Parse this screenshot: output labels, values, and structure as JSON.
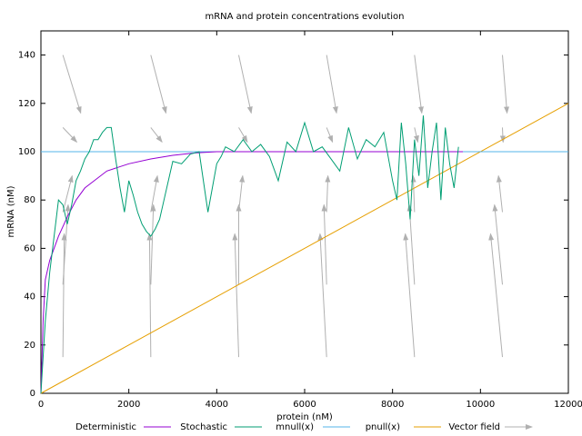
{
  "chart_data": {
    "type": "line",
    "title": "mRNA and protein concentrations evolution",
    "x_label": "protein (nM)",
    "y_label": "mRNA (nM)",
    "xlim": [
      0,
      12000
    ],
    "ylim": [
      0,
      150
    ],
    "xticks": [
      0,
      2000,
      4000,
      6000,
      8000,
      10000,
      12000
    ],
    "yticks": [
      0,
      20,
      40,
      60,
      80,
      100,
      120,
      140
    ],
    "grid": false,
    "series": [
      {
        "name": "Deterministic",
        "color": "#9400d3",
        "x": [
          0,
          50,
          100,
          200,
          400,
          600,
          800,
          1000,
          1500,
          2000,
          2500,
          3000,
          3500,
          4000,
          6000,
          9600
        ],
        "values": [
          0,
          30,
          47,
          55,
          65,
          73,
          80,
          85,
          92,
          95,
          97,
          98.5,
          99.5,
          100,
          100,
          100
        ]
      },
      {
        "name": "Stochastic",
        "color": "#009e73",
        "x": [
          0,
          100,
          200,
          300,
          400,
          500,
          600,
          700,
          800,
          900,
          1000,
          1100,
          1200,
          1300,
          1400,
          1500,
          1600,
          1700,
          1800,
          1900,
          2000,
          2100,
          2200,
          2300,
          2400,
          2500,
          2600,
          2700,
          2800,
          2900,
          3000,
          3200,
          3400,
          3600,
          3800,
          3900,
          4000,
          4100,
          4200,
          4400,
          4600,
          4800,
          5000,
          5200,
          5400,
          5600,
          5800,
          6000,
          6200,
          6400,
          6600,
          6800,
          7000,
          7200,
          7400,
          7600,
          7800,
          8000,
          8100,
          8200,
          8300,
          8400,
          8500,
          8600,
          8700,
          8800,
          8900,
          9000,
          9100,
          9200,
          9300,
          9400,
          9500
        ],
        "values": [
          0,
          30,
          50,
          65,
          80,
          78,
          70,
          78,
          88,
          92,
          97,
          100,
          105,
          105,
          108,
          110,
          110,
          97,
          85,
          75,
          88,
          82,
          75,
          70,
          67,
          65,
          68,
          72,
          80,
          88,
          96,
          95,
          99,
          100,
          75,
          85,
          95,
          98,
          102,
          100,
          105,
          100,
          103,
          98,
          88,
          104,
          100,
          112,
          100,
          102,
          97,
          92,
          110,
          97,
          105,
          102,
          108,
          88,
          80,
          112,
          95,
          72,
          105,
          90,
          115,
          85,
          100,
          112,
          80,
          110,
          95,
          85,
          102
        ]
      },
      {
        "name": "mnull(x)",
        "color": "#56b4e9",
        "x": [
          0,
          12000
        ],
        "values": [
          100,
          100
        ]
      },
      {
        "name": "pnull(x)",
        "color": "#e69f00",
        "x": [
          0,
          12000
        ],
        "values": [
          0,
          120
        ]
      },
      {
        "name": "Vector field",
        "color": "#b0b0b0",
        "x": [
          500,
          2500,
          4500,
          6500,
          8500,
          10500,
          500,
          2500,
          4500,
          6500,
          8500,
          10500,
          500,
          2500,
          4500,
          6500,
          8500,
          10500,
          500,
          2500,
          4500,
          6500,
          8500,
          10500,
          500,
          2500,
          4500,
          6500,
          8500,
          10500
        ],
        "y": [
          15,
          15,
          15,
          15,
          15,
          15,
          45,
          45,
          45,
          45,
          45,
          45,
          75,
          75,
          75,
          75,
          75,
          75,
          110,
          110,
          110,
          110,
          110,
          110,
          140,
          140,
          140,
          140,
          140,
          140
        ],
        "dx": [
          30,
          -30,
          -90,
          -150,
          -210,
          -270,
          120,
          60,
          0,
          -60,
          -120,
          -180,
          210,
          150,
          90,
          30,
          -30,
          -90,
          315,
          255,
          195,
          135,
          75,
          15,
          405,
          345,
          285,
          225,
          165,
          105
        ],
        "dy": [
          51,
          51,
          51,
          51,
          51,
          51,
          33,
          33,
          33,
          33,
          33,
          33,
          15,
          15,
          15,
          15,
          15,
          15,
          -6,
          -6,
          -6,
          -6,
          -6,
          -6,
          -24,
          -24,
          -24,
          -24,
          -24,
          -24
        ]
      }
    ]
  }
}
